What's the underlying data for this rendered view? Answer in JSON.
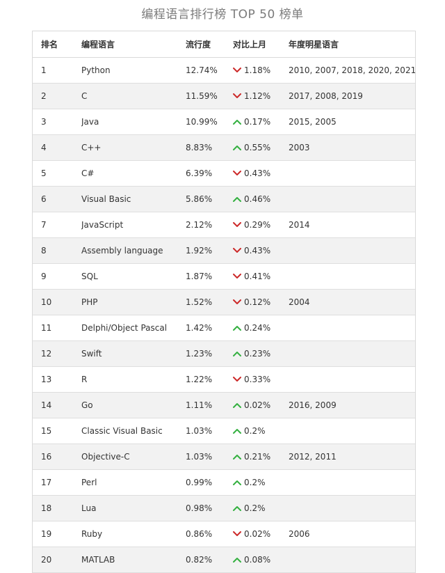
{
  "title": "编程语言排行榜 TOP 50 榜单",
  "headers": {
    "rank": "排名",
    "language": "编程语言",
    "popularity": "流行度",
    "change": "对比上月",
    "hall_of_fame": "年度明星语言"
  },
  "colors": {
    "down": "#cc2a2a",
    "up": "#34b040"
  },
  "rows": [
    {
      "rank": "1",
      "language": "Python",
      "popularity": "12.74%",
      "direction": "down",
      "change": "1.18%",
      "hall_of_fame": "2010, 2007, 2018, 2020, 2021"
    },
    {
      "rank": "2",
      "language": "C",
      "popularity": "11.59%",
      "direction": "down",
      "change": "1.12%",
      "hall_of_fame": "2017, 2008, 2019"
    },
    {
      "rank": "3",
      "language": "Java",
      "popularity": "10.99%",
      "direction": "up",
      "change": "0.17%",
      "hall_of_fame": "2015, 2005"
    },
    {
      "rank": "4",
      "language": "C++",
      "popularity": "8.83%",
      "direction": "up",
      "change": "0.55%",
      "hall_of_fame": "2003"
    },
    {
      "rank": "5",
      "language": "C#",
      "popularity": "6.39%",
      "direction": "down",
      "change": "0.43%",
      "hall_of_fame": ""
    },
    {
      "rank": "6",
      "language": "Visual Basic",
      "popularity": "5.86%",
      "direction": "up",
      "change": "0.46%",
      "hall_of_fame": ""
    },
    {
      "rank": "7",
      "language": "JavaScript",
      "popularity": "2.12%",
      "direction": "down",
      "change": "0.29%",
      "hall_of_fame": "2014"
    },
    {
      "rank": "8",
      "language": "Assembly language",
      "popularity": "1.92%",
      "direction": "down",
      "change": "0.43%",
      "hall_of_fame": ""
    },
    {
      "rank": "9",
      "language": "SQL",
      "popularity": "1.87%",
      "direction": "down",
      "change": "0.41%",
      "hall_of_fame": ""
    },
    {
      "rank": "10",
      "language": "PHP",
      "popularity": "1.52%",
      "direction": "down",
      "change": "0.12%",
      "hall_of_fame": "2004"
    },
    {
      "rank": "11",
      "language": "Delphi/Object Pascal",
      "popularity": "1.42%",
      "direction": "up",
      "change": "0.24%",
      "hall_of_fame": ""
    },
    {
      "rank": "12",
      "language": "Swift",
      "popularity": "1.23%",
      "direction": "up",
      "change": "0.23%",
      "hall_of_fame": ""
    },
    {
      "rank": "13",
      "language": "R",
      "popularity": "1.22%",
      "direction": "down",
      "change": "0.33%",
      "hall_of_fame": ""
    },
    {
      "rank": "14",
      "language": "Go",
      "popularity": "1.11%",
      "direction": "up",
      "change": "0.02%",
      "hall_of_fame": "2016, 2009"
    },
    {
      "rank": "15",
      "language": "Classic Visual Basic",
      "popularity": "1.03%",
      "direction": "up",
      "change": "0.2%",
      "hall_of_fame": ""
    },
    {
      "rank": "16",
      "language": "Objective-C",
      "popularity": "1.03%",
      "direction": "up",
      "change": "0.21%",
      "hall_of_fame": "2012, 2011"
    },
    {
      "rank": "17",
      "language": "Perl",
      "popularity": "0.99%",
      "direction": "up",
      "change": "0.2%",
      "hall_of_fame": ""
    },
    {
      "rank": "18",
      "language": "Lua",
      "popularity": "0.98%",
      "direction": "up",
      "change": "0.2%",
      "hall_of_fame": ""
    },
    {
      "rank": "19",
      "language": "Ruby",
      "popularity": "0.86%",
      "direction": "down",
      "change": "0.02%",
      "hall_of_fame": "2006"
    },
    {
      "rank": "20",
      "language": "MATLAB",
      "popularity": "0.82%",
      "direction": "up",
      "change": "0.08%",
      "hall_of_fame": ""
    }
  ]
}
